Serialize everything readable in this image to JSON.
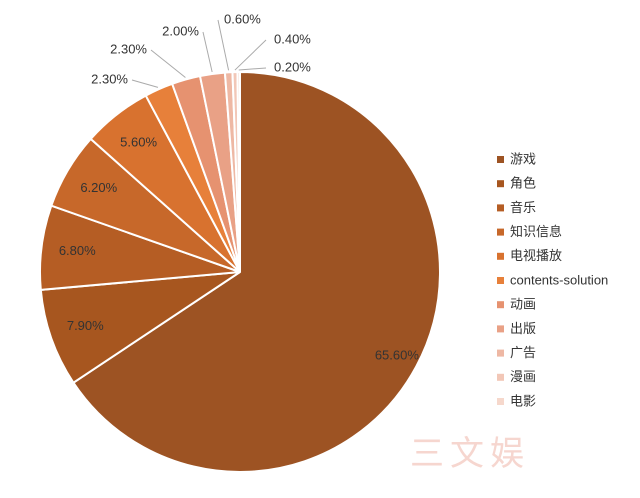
{
  "chart_data": {
    "type": "pie",
    "categories": [
      "游戏",
      "角色",
      "音乐",
      "知识信息",
      "电视播放",
      "contents-solution",
      "动画",
      "出版",
      "广告",
      "漫画",
      "电影"
    ],
    "values": [
      65.6,
      7.9,
      6.8,
      6.2,
      5.6,
      2.3,
      2.3,
      2.0,
      0.6,
      0.4,
      0.2
    ],
    "value_labels": [
      "65.60%",
      "7.90%",
      "6.80%",
      "6.20%",
      "5.60%",
      "2.30%",
      "2.30%",
      "2.00%",
      "0.60%",
      "0.40%",
      "0.20%"
    ],
    "colors": [
      "#9d5323",
      "#a7561f",
      "#b55d24",
      "#c7682a",
      "#d8722f",
      "#e7803a",
      "#e69270",
      "#e9a186",
      "#eeb8a4",
      "#f2c7b7",
      "#f6d8cc"
    ],
    "legend": "right",
    "watermark": "三文娱"
  }
}
